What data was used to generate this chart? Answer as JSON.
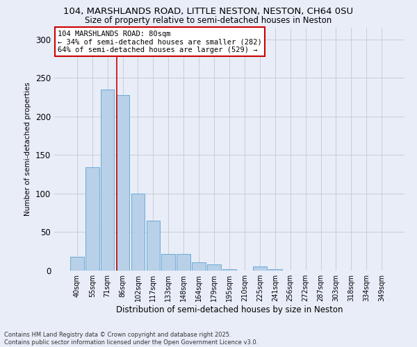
{
  "title_line1": "104, MARSHLANDS ROAD, LITTLE NESTON, NESTON, CH64 0SU",
  "title_line2": "Size of property relative to semi-detached houses in Neston",
  "xlabel": "Distribution of semi-detached houses by size in Neston",
  "ylabel": "Number of semi-detached properties",
  "categories": [
    "40sqm",
    "55sqm",
    "71sqm",
    "86sqm",
    "102sqm",
    "117sqm",
    "133sqm",
    "148sqm",
    "164sqm",
    "179sqm",
    "195sqm",
    "210sqm",
    "225sqm",
    "241sqm",
    "256sqm",
    "272sqm",
    "287sqm",
    "303sqm",
    "318sqm",
    "334sqm",
    "349sqm"
  ],
  "values": [
    18,
    134,
    235,
    228,
    100,
    65,
    22,
    22,
    11,
    8,
    2,
    0,
    5,
    2,
    0,
    0,
    0,
    0,
    0,
    0,
    0
  ],
  "bar_color": "#b8d0e8",
  "bar_edge_color": "#6aaad4",
  "vline_x": 2.6,
  "vline_color": "#cc0000",
  "annotation_title": "104 MARSHLANDS ROAD: 80sqm",
  "annotation_line2": "← 34% of semi-detached houses are smaller (282)",
  "annotation_line3": "64% of semi-detached houses are larger (529) →",
  "annotation_box_edge": "#cc0000",
  "ylim": [
    0,
    315
  ],
  "yticks": [
    0,
    50,
    100,
    150,
    200,
    250,
    300
  ],
  "footer_line1": "Contains HM Land Registry data © Crown copyright and database right 2025.",
  "footer_line2": "Contains public sector information licensed under the Open Government Licence v3.0.",
  "bg_color": "#e8edf8",
  "grid_color": "#c8ccd8"
}
